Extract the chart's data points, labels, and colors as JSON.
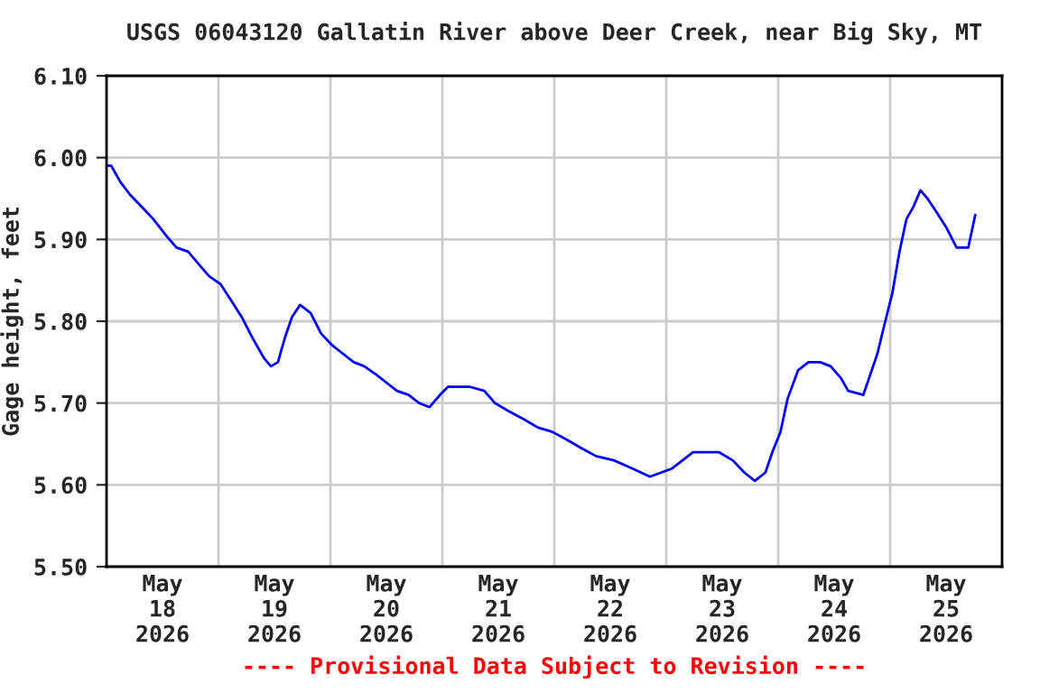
{
  "chart_data": {
    "type": "line",
    "title": "USGS 06043120 Gallatin River above Deer Creek, near Big Sky, MT",
    "ylabel": "Gage height, feet",
    "annotations": [
      "---- Provisional Data Subject to Revision ----"
    ],
    "x": [
      "2026-05-18T00:00",
      "2026-05-18T01:00",
      "2026-05-18T03:00",
      "2026-05-18T05:00",
      "2026-05-18T07:30",
      "2026-05-18T10:00",
      "2026-05-18T12:45",
      "2026-05-18T15:00",
      "2026-05-18T17:30",
      "2026-05-18T19:45",
      "2026-05-18T22:00",
      "2026-05-19T00:30",
      "2026-05-19T02:45",
      "2026-05-19T05:00",
      "2026-05-19T07:15",
      "2026-05-19T09:45",
      "2026-05-19T11:15",
      "2026-05-19T12:45",
      "2026-05-19T14:15",
      "2026-05-19T15:45",
      "2026-05-19T17:30",
      "2026-05-19T19:45",
      "2026-05-19T22:00",
      "2026-05-20T00:30",
      "2026-05-20T02:45",
      "2026-05-20T05:00",
      "2026-05-20T07:15",
      "2026-05-20T09:45",
      "2026-05-20T12:00",
      "2026-05-20T14:15",
      "2026-05-20T16:45",
      "2026-05-20T19:00",
      "2026-05-20T21:15",
      "2026-05-20T23:30",
      "2026-05-21T01:15",
      "2026-05-21T05:45",
      "2026-05-21T09:00",
      "2026-05-21T11:15",
      "2026-05-21T14:15",
      "2026-05-21T17:30",
      "2026-05-21T20:30",
      "2026-05-21T23:30",
      "2026-05-22T02:45",
      "2026-05-22T05:45",
      "2026-05-22T09:00",
      "2026-05-22T12:45",
      "2026-05-22T16:45",
      "2026-05-22T20:30",
      "2026-05-23T01:15",
      "2026-05-23T03:30",
      "2026-05-23T05:45",
      "2026-05-23T11:15",
      "2026-05-23T14:15",
      "2026-05-23T16:45",
      "2026-05-23T19:00",
      "2026-05-23T21:15",
      "2026-05-23T22:45",
      "2026-05-24T00:30",
      "2026-05-24T02:00",
      "2026-05-24T04:15",
      "2026-05-24T06:30",
      "2026-05-24T09:00",
      "2026-05-24T11:15",
      "2026-05-24T13:30",
      "2026-05-24T15:00",
      "2026-05-24T18:15",
      "2026-05-24T19:45",
      "2026-05-24T21:15",
      "2026-05-24T22:45",
      "2026-05-25T00:30",
      "2026-05-25T02:00",
      "2026-05-25T03:30",
      "2026-05-25T05:00",
      "2026-05-25T06:30",
      "2026-05-25T08:00",
      "2026-05-25T09:45",
      "2026-05-25T12:00",
      "2026-05-25T14:15",
      "2026-05-25T16:45",
      "2026-05-25T18:15"
    ],
    "series": [
      {
        "color": "#0000ff",
        "values": [
          5.99,
          5.99,
          5.97,
          5.955,
          5.94,
          5.925,
          5.905,
          5.89,
          5.885,
          5.87,
          5.855,
          5.845,
          5.825,
          5.805,
          5.78,
          5.755,
          5.745,
          5.75,
          5.78,
          5.805,
          5.82,
          5.81,
          5.785,
          5.77,
          5.76,
          5.75,
          5.745,
          5.735,
          5.725,
          5.715,
          5.71,
          5.7,
          5.695,
          5.71,
          5.72,
          5.72,
          5.715,
          5.7,
          5.69,
          5.68,
          5.67,
          5.665,
          5.655,
          5.645,
          5.635,
          5.63,
          5.62,
          5.61,
          5.62,
          5.63,
          5.64,
          5.64,
          5.63,
          5.615,
          5.605,
          5.615,
          5.64,
          5.665,
          5.705,
          5.74,
          5.75,
          5.75,
          5.745,
          5.73,
          5.715,
          5.71,
          5.735,
          5.76,
          5.795,
          5.835,
          5.885,
          5.925,
          5.94,
          5.96,
          5.95,
          5.935,
          5.915,
          5.89,
          5.89,
          5.93
        ]
      }
    ],
    "xlim": [
      "2026-05-18T00:00",
      "2026-05-26T00:00"
    ],
    "xticks": [
      {
        "value": "2026-05-18T00:00",
        "label": null
      },
      {
        "value": "2026-05-18T12:00",
        "label": "May\n18\n2026"
      },
      {
        "value": "2026-05-19T00:00",
        "label": null
      },
      {
        "value": "2026-05-19T12:00",
        "label": "May\n19\n2026"
      },
      {
        "value": "2026-05-20T00:00",
        "label": null
      },
      {
        "value": "2026-05-20T12:00",
        "label": "May\n20\n2026"
      },
      {
        "value": "2026-05-21T00:00",
        "label": null
      },
      {
        "value": "2026-05-21T12:00",
        "label": "May\n21\n2026"
      },
      {
        "value": "2026-05-22T00:00",
        "label": null
      },
      {
        "value": "2026-05-22T12:00",
        "label": "May\n22\n2026"
      },
      {
        "value": "2026-05-23T00:00",
        "label": null
      },
      {
        "value": "2026-05-23T12:00",
        "label": "May\n23\n2026"
      },
      {
        "value": "2026-05-24T00:00",
        "label": null
      },
      {
        "value": "2026-05-24T12:00",
        "label": "May\n24\n2026"
      },
      {
        "value": "2026-05-25T00:00",
        "label": null
      },
      {
        "value": "2026-05-25T12:00",
        "label": "May\n25\n2026"
      },
      {
        "value": "2026-05-26T00:00",
        "label": null
      }
    ],
    "ylim": [
      5.5,
      6.1
    ],
    "yticks": [
      {
        "value": 5.5,
        "label": "5.50"
      },
      {
        "value": 5.6,
        "label": "5.60"
      },
      {
        "value": 5.7,
        "label": "5.70"
      },
      {
        "value": 5.8,
        "label": "5.80"
      },
      {
        "value": 5.9,
        "label": "5.90"
      },
      {
        "value": 6.0,
        "label": "6.00"
      },
      {
        "value": 6.1,
        "label": "6.10"
      }
    ],
    "grid": true,
    "legend": false
  }
}
